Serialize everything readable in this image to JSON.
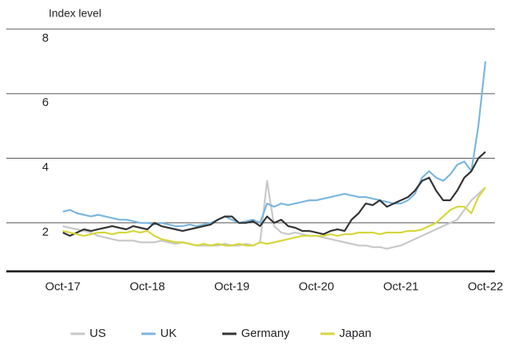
{
  "chart_data": {
    "type": "line",
    "ylabel": "Index level",
    "categories": [
      "Oct-17",
      null,
      null,
      null,
      null,
      null,
      null,
      null,
      null,
      null,
      null,
      null,
      "Oct-18",
      null,
      null,
      null,
      null,
      null,
      null,
      null,
      null,
      null,
      null,
      null,
      "Oct-19",
      null,
      null,
      null,
      null,
      null,
      null,
      null,
      null,
      null,
      null,
      null,
      "Oct-20",
      null,
      null,
      null,
      null,
      null,
      null,
      null,
      null,
      null,
      null,
      null,
      "Oct-21",
      null,
      null,
      null,
      null,
      null,
      null,
      null,
      null,
      null,
      null,
      null,
      "Oct-22"
    ],
    "series": [
      {
        "name": "US",
        "color": "#c8c8c8",
        "values": [
          1.9,
          1.85,
          1.8,
          1.75,
          1.7,
          1.6,
          1.55,
          1.5,
          1.45,
          1.45,
          1.45,
          1.4,
          1.4,
          1.4,
          1.45,
          1.4,
          1.35,
          1.4,
          1.35,
          1.3,
          1.3,
          1.3,
          1.3,
          1.35,
          1.3,
          1.3,
          1.35,
          1.3,
          1.4,
          3.3,
          1.9,
          1.7,
          1.65,
          1.7,
          1.65,
          1.6,
          1.6,
          1.55,
          1.5,
          1.45,
          1.4,
          1.35,
          1.3,
          1.3,
          1.25,
          1.25,
          1.2,
          1.25,
          1.3,
          1.4,
          1.5,
          1.6,
          1.7,
          1.8,
          1.9,
          2.0,
          2.1,
          2.4,
          2.7,
          2.9,
          3.1
        ]
      },
      {
        "name": "UK",
        "color": "#7ab6e0",
        "values": [
          2.35,
          2.4,
          2.3,
          2.25,
          2.2,
          2.25,
          2.2,
          2.15,
          2.1,
          2.1,
          2.05,
          2.0,
          2.0,
          1.95,
          2.0,
          1.95,
          1.9,
          1.9,
          1.95,
          1.9,
          1.95,
          2.0,
          2.1,
          2.2,
          2.1,
          2.0,
          2.05,
          2.1,
          2.0,
          2.6,
          2.5,
          2.6,
          2.55,
          2.6,
          2.65,
          2.7,
          2.7,
          2.75,
          2.8,
          2.85,
          2.9,
          2.85,
          2.8,
          2.8,
          2.75,
          2.7,
          2.65,
          2.6,
          2.6,
          2.7,
          2.9,
          3.4,
          3.6,
          3.4,
          3.3,
          3.5,
          3.8,
          3.9,
          3.6,
          5.0,
          7.0
        ]
      },
      {
        "name": "Germany",
        "color": "#333333",
        "values": [
          1.7,
          1.6,
          1.7,
          1.8,
          1.75,
          1.8,
          1.85,
          1.9,
          1.85,
          1.8,
          1.9,
          1.85,
          1.8,
          2.0,
          1.9,
          1.85,
          1.8,
          1.75,
          1.8,
          1.85,
          1.9,
          1.95,
          2.1,
          2.2,
          2.2,
          2.0,
          2.0,
          2.05,
          1.9,
          2.2,
          2.0,
          2.1,
          1.9,
          1.85,
          1.75,
          1.75,
          1.7,
          1.65,
          1.75,
          1.8,
          1.75,
          2.1,
          2.3,
          2.6,
          2.55,
          2.7,
          2.5,
          2.6,
          2.7,
          2.8,
          3.0,
          3.3,
          3.4,
          3.0,
          2.7,
          2.7,
          3.0,
          3.4,
          3.6,
          4.0,
          4.2
        ]
      },
      {
        "name": "Japan",
        "color": "#d6d63a",
        "values": [
          1.75,
          1.7,
          1.65,
          1.6,
          1.65,
          1.7,
          1.7,
          1.65,
          1.7,
          1.7,
          1.75,
          1.7,
          1.75,
          1.6,
          1.5,
          1.45,
          1.4,
          1.4,
          1.35,
          1.3,
          1.35,
          1.3,
          1.35,
          1.3,
          1.3,
          1.35,
          1.3,
          1.3,
          1.4,
          1.35,
          1.4,
          1.45,
          1.5,
          1.55,
          1.6,
          1.6,
          1.6,
          1.6,
          1.65,
          1.6,
          1.65,
          1.65,
          1.7,
          1.7,
          1.7,
          1.65,
          1.7,
          1.7,
          1.7,
          1.75,
          1.75,
          1.8,
          1.9,
          2.0,
          2.2,
          2.4,
          2.5,
          2.5,
          2.3,
          2.8,
          3.1
        ]
      }
    ],
    "ylim": [
      0.5,
      8
    ],
    "yticks": [
      2,
      4,
      6,
      8
    ],
    "grid": true,
    "legend": "bottom"
  }
}
